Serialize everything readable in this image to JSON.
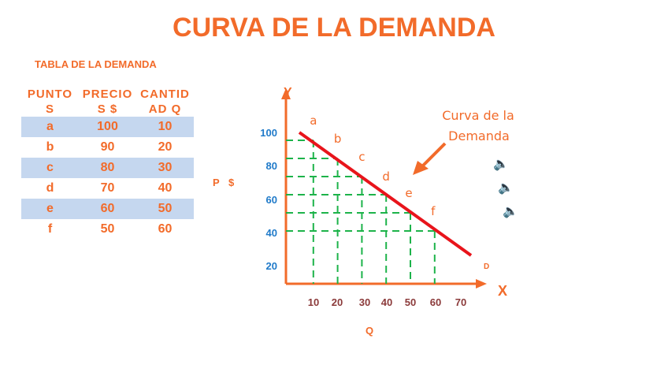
{
  "title": "CURVA DE LA DEMANDA",
  "table": {
    "title": "TABLA DE LA DEMANDA",
    "headers": [
      "PUNTO S",
      "PRECIO S $",
      "CANTID AD Q"
    ],
    "rows": [
      [
        "a",
        "100",
        "10"
      ],
      [
        "b",
        "90",
        "20"
      ],
      [
        "c",
        "80",
        "30"
      ],
      [
        "d",
        "70",
        "40"
      ],
      [
        "e",
        "60",
        "50"
      ],
      [
        "f",
        "50",
        "60"
      ]
    ]
  },
  "price_label": "P $",
  "chart_data": {
    "type": "line",
    "xlabel": "Q",
    "x_axis_letter": "X",
    "y_axis_letter": "Y",
    "x_ticks": [
      "10",
      "20",
      "30",
      "40",
      "50",
      "60",
      "70"
    ],
    "y_ticks": [
      "100",
      "80",
      "60",
      "40",
      "20"
    ],
    "series": [
      {
        "name": "D",
        "points": [
          {
            "label": "a",
            "x": 10,
            "y": 100
          },
          {
            "label": "b",
            "x": 20,
            "y": 90
          },
          {
            "label": "c",
            "x": 30,
            "y": 80
          },
          {
            "label": "d",
            "x": 40,
            "y": 70
          },
          {
            "label": "e",
            "x": 50,
            "y": 60
          },
          {
            "label": "f",
            "x": 60,
            "y": 50
          }
        ]
      }
    ],
    "annotation": "Curva de la Demanda",
    "grid": "dashed guide lines to each point",
    "colors": {
      "curve": "#e8141b",
      "axes": "#f26b2a",
      "guides": "#1db34a",
      "y_ticks": "#1f7ac9",
      "x_ticks": "#8b3a3a"
    }
  },
  "icons": [
    "speaker-icon",
    "speaker-icon",
    "speaker-icon"
  ]
}
